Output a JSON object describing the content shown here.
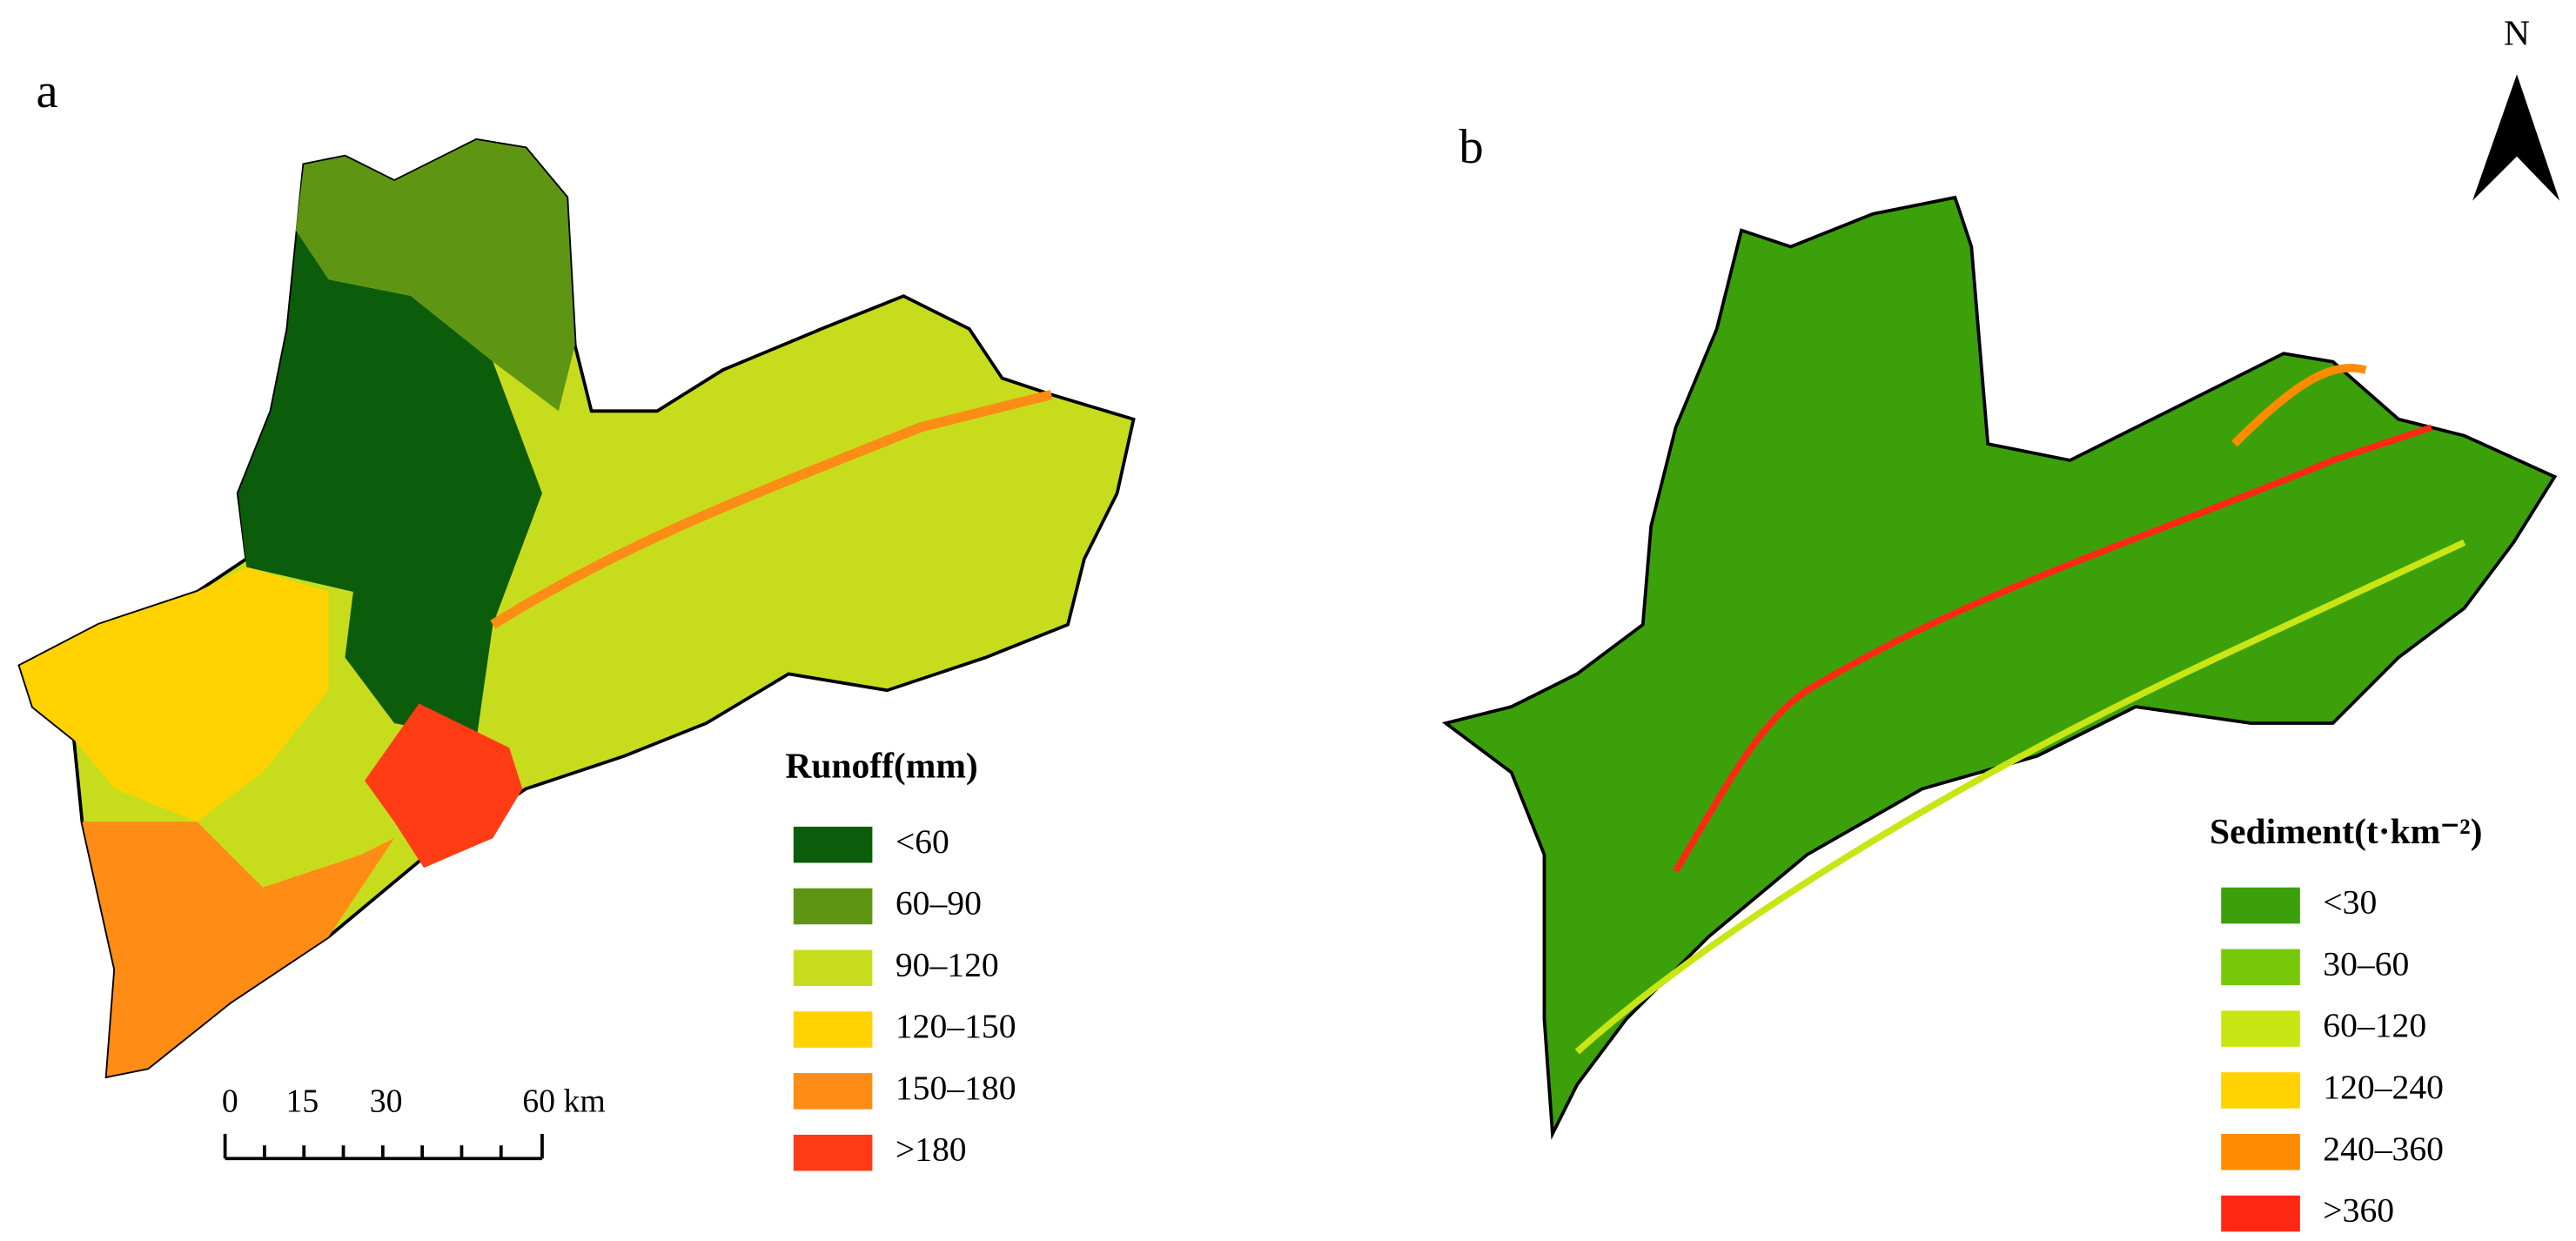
{
  "panels": [
    {
      "label": "a",
      "legend": {
        "title": "Runoff(mm)",
        "items": [
          {
            "label": "<60",
            "color": "#0b5c0b"
          },
          {
            "label": "60–90",
            "color": "#5e9614"
          },
          {
            "label": "90–120",
            "color": "#c8dc1e"
          },
          {
            "label": "120–150",
            "color": "#ffd200"
          },
          {
            "label": "150–180",
            "color": "#ff8c14"
          },
          {
            "label": ">180",
            "color": "#ff3c14"
          }
        ]
      },
      "scale_bar": {
        "labels": [
          "0",
          "15",
          "30",
          "60 km"
        ]
      }
    },
    {
      "label": "b",
      "legend": {
        "title": "Sediment(t·km⁻²)",
        "items": [
          {
            "label": "<30",
            "color": "#3ca00a"
          },
          {
            "label": "30–60",
            "color": "#78c80a"
          },
          {
            "label": "60–120",
            "color": "#c8e614"
          },
          {
            "label": "120–240",
            "color": "#ffd200"
          },
          {
            "label": "240–360",
            "color": "#ff8c00"
          },
          {
            "label": ">360",
            "color": "#ff2814"
          }
        ]
      }
    }
  ],
  "north_arrow": "N"
}
